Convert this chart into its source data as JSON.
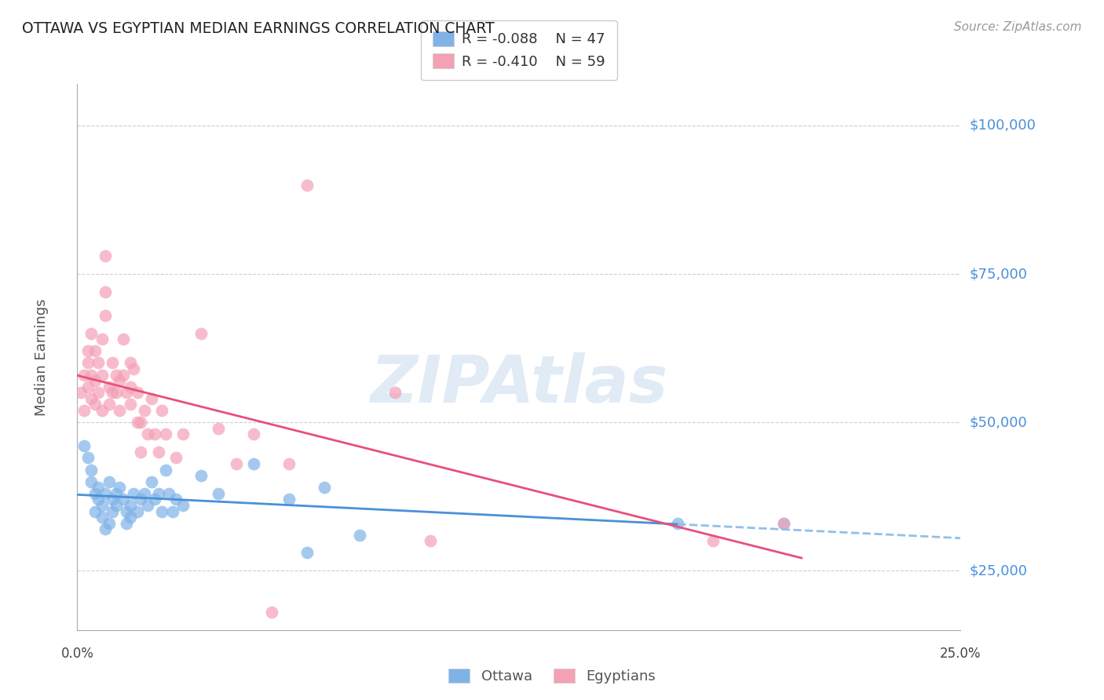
{
  "title": "OTTAWA VS EGYPTIAN MEDIAN EARNINGS CORRELATION CHART",
  "source": "Source: ZipAtlas.com",
  "ylabel": "Median Earnings",
  "yticks": [
    25000,
    50000,
    75000,
    100000
  ],
  "ytick_labels": [
    "$25,000",
    "$50,000",
    "$75,000",
    "$100,000"
  ],
  "xlim": [
    0.0,
    0.25
  ],
  "ylim": [
    15000,
    107000
  ],
  "watermark": "ZIPAtlas",
  "legend_ottawa_R": "-0.088",
  "legend_ottawa_N": "47",
  "legend_egyptians_R": "-0.410",
  "legend_egyptians_N": "59",
  "ottawa_color": "#7fb3e8",
  "egyptian_color": "#f4a0b5",
  "trendline_ottawa_color": "#4a90d9",
  "trendline_egyptian_color": "#e8507a",
  "trendline_ottawa_dashed_color": "#90c0e8",
  "ottawa_points": [
    [
      0.002,
      46000
    ],
    [
      0.003,
      44000
    ],
    [
      0.004,
      40000
    ],
    [
      0.004,
      42000
    ],
    [
      0.005,
      38000
    ],
    [
      0.005,
      35000
    ],
    [
      0.006,
      37000
    ],
    [
      0.006,
      39000
    ],
    [
      0.007,
      36000
    ],
    [
      0.007,
      34000
    ],
    [
      0.008,
      32000
    ],
    [
      0.008,
      38000
    ],
    [
      0.009,
      40000
    ],
    [
      0.009,
      33000
    ],
    [
      0.01,
      35000
    ],
    [
      0.01,
      37000
    ],
    [
      0.011,
      38000
    ],
    [
      0.011,
      36000
    ],
    [
      0.012,
      39000
    ],
    [
      0.013,
      37000
    ],
    [
      0.014,
      35000
    ],
    [
      0.014,
      33000
    ],
    [
      0.015,
      36000
    ],
    [
      0.015,
      34000
    ],
    [
      0.016,
      38000
    ],
    [
      0.017,
      35000
    ],
    [
      0.018,
      37000
    ],
    [
      0.019,
      38000
    ],
    [
      0.02,
      36000
    ],
    [
      0.021,
      40000
    ],
    [
      0.022,
      37000
    ],
    [
      0.023,
      38000
    ],
    [
      0.024,
      35000
    ],
    [
      0.025,
      42000
    ],
    [
      0.026,
      38000
    ],
    [
      0.027,
      35000
    ],
    [
      0.028,
      37000
    ],
    [
      0.03,
      36000
    ],
    [
      0.035,
      41000
    ],
    [
      0.04,
      38000
    ],
    [
      0.05,
      43000
    ],
    [
      0.06,
      37000
    ],
    [
      0.065,
      28000
    ],
    [
      0.07,
      39000
    ],
    [
      0.08,
      31000
    ],
    [
      0.17,
      33000
    ],
    [
      0.2,
      33000
    ]
  ],
  "egyptian_points": [
    [
      0.001,
      55000
    ],
    [
      0.002,
      58000
    ],
    [
      0.002,
      52000
    ],
    [
      0.003,
      62000
    ],
    [
      0.003,
      60000
    ],
    [
      0.003,
      56000
    ],
    [
      0.004,
      65000
    ],
    [
      0.004,
      58000
    ],
    [
      0.004,
      54000
    ],
    [
      0.005,
      62000
    ],
    [
      0.005,
      57000
    ],
    [
      0.005,
      53000
    ],
    [
      0.006,
      60000
    ],
    [
      0.006,
      55000
    ],
    [
      0.007,
      58000
    ],
    [
      0.007,
      52000
    ],
    [
      0.007,
      64000
    ],
    [
      0.008,
      72000
    ],
    [
      0.008,
      78000
    ],
    [
      0.008,
      68000
    ],
    [
      0.009,
      56000
    ],
    [
      0.009,
      53000
    ],
    [
      0.01,
      60000
    ],
    [
      0.01,
      55000
    ],
    [
      0.011,
      58000
    ],
    [
      0.011,
      55000
    ],
    [
      0.012,
      57000
    ],
    [
      0.012,
      52000
    ],
    [
      0.013,
      64000
    ],
    [
      0.013,
      58000
    ],
    [
      0.014,
      55000
    ],
    [
      0.015,
      60000
    ],
    [
      0.015,
      56000
    ],
    [
      0.015,
      53000
    ],
    [
      0.016,
      59000
    ],
    [
      0.017,
      55000
    ],
    [
      0.017,
      50000
    ],
    [
      0.018,
      50000
    ],
    [
      0.018,
      45000
    ],
    [
      0.019,
      52000
    ],
    [
      0.02,
      48000
    ],
    [
      0.021,
      54000
    ],
    [
      0.022,
      48000
    ],
    [
      0.023,
      45000
    ],
    [
      0.024,
      52000
    ],
    [
      0.025,
      48000
    ],
    [
      0.028,
      44000
    ],
    [
      0.03,
      48000
    ],
    [
      0.035,
      65000
    ],
    [
      0.04,
      49000
    ],
    [
      0.045,
      43000
    ],
    [
      0.05,
      48000
    ],
    [
      0.055,
      18000
    ],
    [
      0.06,
      43000
    ],
    [
      0.065,
      90000
    ],
    [
      0.09,
      55000
    ],
    [
      0.1,
      30000
    ],
    [
      0.18,
      30000
    ],
    [
      0.2,
      33000
    ]
  ]
}
